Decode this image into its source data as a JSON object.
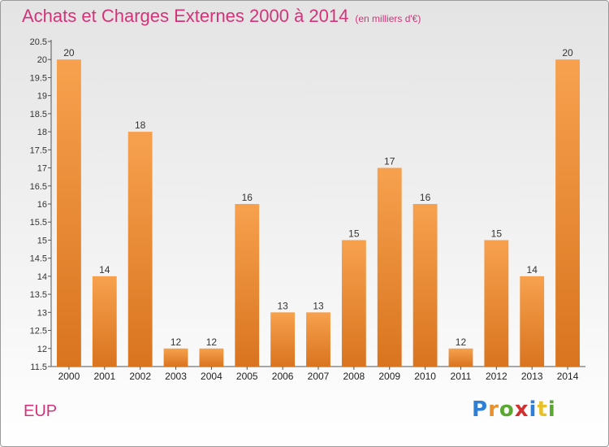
{
  "page": {
    "title": "Achats et Charges Externes 2000 à 2014",
    "subtitle": "(en milliers d'€)",
    "location": "EUP",
    "logo_letters": [
      {
        "char": "P",
        "color": "#2f7fd6"
      },
      {
        "char": "r",
        "color": "#e8902c"
      },
      {
        "char": "o",
        "color": "#5aa832"
      },
      {
        "char": "x",
        "color": "#d42f2f"
      },
      {
        "char": "i",
        "color": "#2f7fd6"
      },
      {
        "char": "t",
        "color": "#e8c22c"
      },
      {
        "char": "i",
        "color": "#5aa832"
      }
    ]
  },
  "chart_data": {
    "type": "bar",
    "categories": [
      "2000",
      "2001",
      "2002",
      "2003",
      "2004",
      "2005",
      "2006",
      "2007",
      "2008",
      "2009",
      "2010",
      "2011",
      "2012",
      "2013",
      "2014"
    ],
    "values": [
      20,
      14,
      18,
      12,
      12,
      16,
      13,
      13,
      15,
      17,
      16,
      12,
      15,
      14,
      20
    ],
    "data_labels": [
      "20",
      "14",
      "18",
      "12",
      "12",
      "16",
      "13",
      "13",
      "15",
      "17",
      "16",
      "12",
      "15",
      "14",
      "20"
    ],
    "ylim": [
      11.5,
      20.5
    ],
    "yticks": [
      11.5,
      12,
      12.5,
      13,
      13.5,
      14,
      14.5,
      15,
      15.5,
      16,
      16.5,
      17,
      17.5,
      18,
      18.5,
      19,
      19.5,
      20,
      20.5
    ],
    "ytick_labels": [
      "11.5",
      "12",
      "12.5",
      "13",
      "13.5",
      "14",
      "14.5",
      "15",
      "15.5",
      "16",
      "16.5",
      "17",
      "17.5",
      "18",
      "18.5",
      "19",
      "19.5",
      "20",
      "20.5"
    ],
    "grid": false,
    "bar_color_light": "#f7a14e",
    "bar_color_dark": "#d9741f"
  }
}
